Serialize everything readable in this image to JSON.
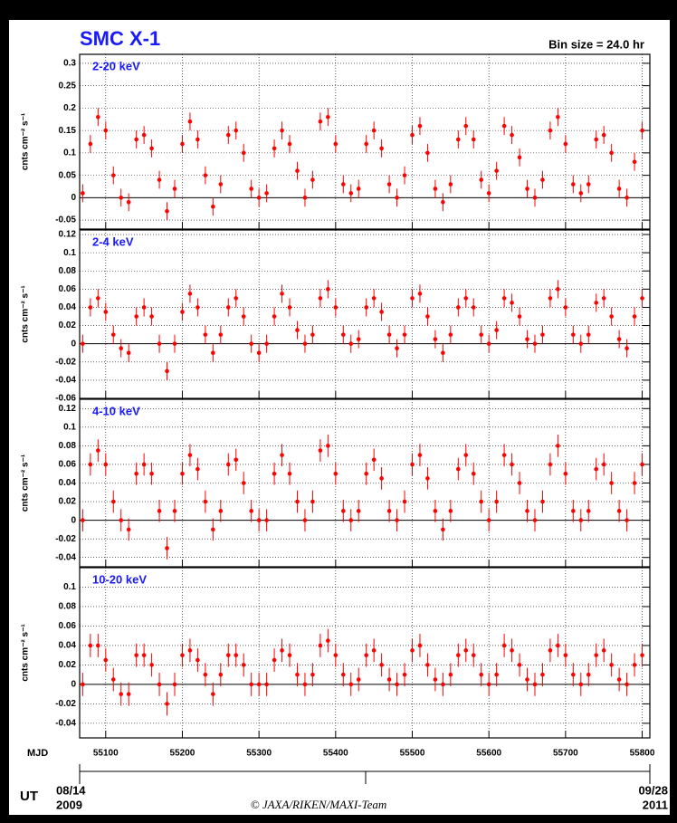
{
  "chart_data": {
    "type": "scatter",
    "title": "SMC X-1",
    "subtitle": "Bin size = 24.0 hr",
    "color": "#ff0000",
    "xlabel": "MJD",
    "xlim": [
      55066,
      55810
    ],
    "xticks": [
      55100,
      55200,
      55300,
      55400,
      55500,
      55600,
      55700,
      55800
    ],
    "time_label": "UT",
    "start_date": "08/14",
    "start_year": "2009",
    "end_date": "09/28",
    "end_year": "2011",
    "credit": "© JAXA/RIKEN/MAXI-Team",
    "x": [
      55070,
      55080,
      55090,
      55100,
      55110,
      55120,
      55130,
      55140,
      55150,
      55160,
      55170,
      55180,
      55190,
      55200,
      55210,
      55220,
      55230,
      55240,
      55250,
      55260,
      55270,
      55280,
      55290,
      55300,
      55310,
      55320,
      55330,
      55340,
      55350,
      55360,
      55370,
      55380,
      55390,
      55400,
      55410,
      55420,
      55430,
      55440,
      55450,
      55460,
      55470,
      55480,
      55490,
      55500,
      55510,
      55520,
      55530,
      55540,
      55550,
      55560,
      55570,
      55580,
      55590,
      55600,
      55610,
      55620,
      55630,
      55640,
      55650,
      55660,
      55670,
      55680,
      55690,
      55700,
      55710,
      55720,
      55730,
      55740,
      55750,
      55760,
      55770,
      55780,
      55790,
      55800
    ],
    "panels": [
      {
        "label": "2-20 keV",
        "ylabel": "cnts cm⁻² s⁻¹",
        "ylim": [
          -0.07,
          0.32
        ],
        "yticks": [
          -0.05,
          0,
          0.05,
          0.1,
          0.15,
          0.2,
          0.25,
          0.3
        ],
        "error": 0.02,
        "values": [
          0.01,
          0.12,
          0.18,
          0.15,
          0.05,
          0.0,
          -0.01,
          0.13,
          0.14,
          0.11,
          0.04,
          -0.03,
          0.02,
          0.12,
          0.17,
          0.13,
          0.05,
          -0.02,
          0.03,
          0.14,
          0.15,
          0.1,
          0.02,
          0.0,
          0.01,
          0.11,
          0.15,
          0.12,
          0.06,
          0.0,
          0.04,
          0.17,
          0.18,
          0.12,
          0.03,
          0.01,
          0.02,
          0.12,
          0.15,
          0.11,
          0.03,
          0.0,
          0.05,
          0.14,
          0.16,
          0.1,
          0.02,
          -0.01,
          0.03,
          0.13,
          0.16,
          0.13,
          0.04,
          0.01,
          0.06,
          0.16,
          0.14,
          0.09,
          0.02,
          0.0,
          0.04,
          0.15,
          0.18,
          0.12,
          0.03,
          0.01,
          0.03,
          0.13,
          0.14,
          0.1,
          0.02,
          0.0,
          0.08,
          0.15
        ]
      },
      {
        "label": "2-4 keV",
        "ylabel": "cnts cm⁻² s⁻¹",
        "ylim": [
          -0.06,
          0.125
        ],
        "yticks": [
          -0.06,
          -0.04,
          -0.02,
          0,
          0.02,
          0.04,
          0.06,
          0.08,
          0.1,
          0.12
        ],
        "error": 0.01,
        "values": [
          0.0,
          0.04,
          0.05,
          0.035,
          0.01,
          -0.005,
          -0.01,
          0.03,
          0.04,
          0.03,
          0.0,
          -0.03,
          0.0,
          0.035,
          0.055,
          0.04,
          0.01,
          -0.01,
          0.01,
          0.04,
          0.05,
          0.03,
          0.0,
          -0.01,
          0.0,
          0.03,
          0.055,
          0.04,
          0.015,
          0.0,
          0.01,
          0.05,
          0.06,
          0.04,
          0.01,
          0.0,
          0.005,
          0.04,
          0.05,
          0.035,
          0.01,
          -0.005,
          0.01,
          0.05,
          0.055,
          0.03,
          0.005,
          -0.01,
          0.01,
          0.04,
          0.05,
          0.04,
          0.01,
          0.0,
          0.015,
          0.05,
          0.045,
          0.03,
          0.005,
          0.0,
          0.01,
          0.05,
          0.06,
          0.04,
          0.01,
          0.0,
          0.01,
          0.045,
          0.05,
          0.03,
          0.005,
          -0.005,
          0.03,
          0.05
        ]
      },
      {
        "label": "4-10 keV",
        "ylabel": "cnts cm⁻² s⁻¹",
        "ylim": [
          -0.05,
          0.13
        ],
        "yticks": [
          -0.04,
          -0.02,
          0,
          0.02,
          0.04,
          0.06,
          0.08,
          0.1,
          0.12
        ],
        "error": 0.012,
        "values": [
          0.0,
          0.06,
          0.075,
          0.06,
          0.02,
          0.0,
          -0.01,
          0.05,
          0.06,
          0.05,
          0.01,
          -0.03,
          0.01,
          0.05,
          0.07,
          0.055,
          0.02,
          -0.01,
          0.01,
          0.06,
          0.065,
          0.04,
          0.01,
          0.0,
          0.0,
          0.05,
          0.07,
          0.05,
          0.02,
          0.0,
          0.02,
          0.075,
          0.08,
          0.05,
          0.01,
          0.0,
          0.01,
          0.05,
          0.065,
          0.045,
          0.01,
          0.0,
          0.02,
          0.06,
          0.07,
          0.045,
          0.01,
          -0.01,
          0.01,
          0.055,
          0.07,
          0.05,
          0.02,
          0.0,
          0.02,
          0.07,
          0.06,
          0.04,
          0.01,
          0.0,
          0.02,
          0.06,
          0.08,
          0.05,
          0.01,
          0.0,
          0.01,
          0.055,
          0.06,
          0.04,
          0.01,
          0.0,
          0.04,
          0.06
        ]
      },
      {
        "label": "10-20 keV",
        "ylabel": "cnts cm⁻² s⁻¹",
        "ylim": [
          -0.055,
          0.12
        ],
        "yticks": [
          -0.04,
          -0.02,
          0,
          0.02,
          0.04,
          0.06,
          0.08,
          0.1
        ],
        "error": 0.012,
        "values": [
          0.0,
          0.04,
          0.04,
          0.025,
          0.005,
          -0.01,
          -0.01,
          0.03,
          0.03,
          0.02,
          0.0,
          -0.02,
          0.0,
          0.03,
          0.035,
          0.025,
          0.01,
          -0.01,
          0.01,
          0.03,
          0.03,
          0.02,
          0.0,
          0.0,
          0.0,
          0.025,
          0.035,
          0.03,
          0.01,
          0.0,
          0.01,
          0.04,
          0.045,
          0.03,
          0.01,
          0.0,
          0.005,
          0.03,
          0.035,
          0.02,
          0.005,
          0.0,
          0.01,
          0.035,
          0.04,
          0.02,
          0.005,
          0.0,
          0.01,
          0.03,
          0.035,
          0.03,
          0.01,
          0.0,
          0.01,
          0.04,
          0.035,
          0.02,
          0.005,
          0.0,
          0.01,
          0.035,
          0.04,
          0.03,
          0.01,
          0.0,
          0.01,
          0.03,
          0.035,
          0.02,
          0.005,
          0.0,
          0.02,
          0.03
        ]
      }
    ]
  }
}
